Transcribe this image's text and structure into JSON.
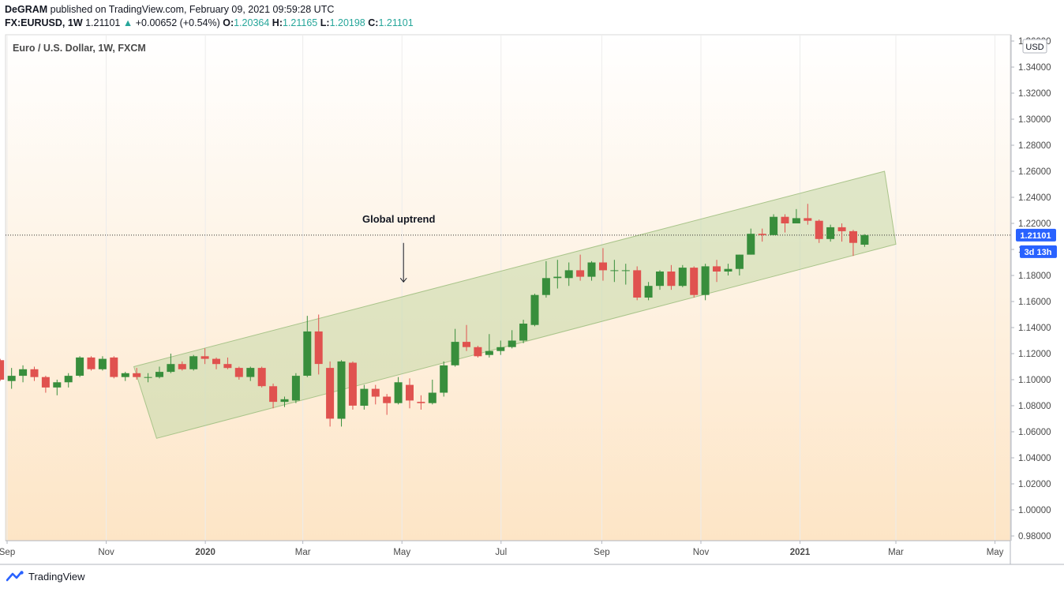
{
  "header": {
    "author": "DeGRAM",
    "published_text": "published on TradingView.com, February 09, 2021 09:59:28 UTC",
    "symbol": "FX:EURUSD, 1W",
    "last": "1.21101",
    "change": "+0.00652 (+0.54%)",
    "open_label": "O:",
    "open": "1.20364",
    "high_label": "H:",
    "high": "1.21165",
    "low_label": "L:",
    "low": "1.20198",
    "close_label": "C:",
    "close": "1.21101"
  },
  "footer": {
    "brand": "TradingView"
  },
  "colors": {
    "up": "#388e3c",
    "down": "#e0524f",
    "channel": "#c5d9a8",
    "price_tag": "#2962ff"
  },
  "chart_data": {
    "type": "candlestick",
    "title": "Euro / U.S. Dollar, 1W, FXCM",
    "currency": "USD",
    "ylim": [
      0.98,
      1.36
    ],
    "y_ticks": [
      "1.36000",
      "1.34000",
      "1.32000",
      "1.30000",
      "1.28000",
      "1.26000",
      "1.24000",
      "1.22000",
      "1.20000",
      "1.18000",
      "1.16000",
      "1.14000",
      "1.12000",
      "1.10000",
      "1.08000",
      "1.06000",
      "1.04000",
      "1.02000",
      "1.00000",
      "0.98000"
    ],
    "x_ticks": [
      {
        "label": "Sep",
        "date": "2019-09-01",
        "bold": false
      },
      {
        "label": "Nov",
        "date": "2019-11-01",
        "bold": false
      },
      {
        "label": "2020",
        "date": "2020-01-01",
        "bold": true
      },
      {
        "label": "Mar",
        "date": "2020-03-01",
        "bold": false
      },
      {
        "label": "May",
        "date": "2020-05-01",
        "bold": false
      },
      {
        "label": "Jul",
        "date": "2020-07-01",
        "bold": false
      },
      {
        "label": "Sep",
        "date": "2020-09-01",
        "bold": false
      },
      {
        "label": "Nov",
        "date": "2020-11-01",
        "bold": false
      },
      {
        "label": "2021",
        "date": "2021-01-01",
        "bold": true
      },
      {
        "label": "Mar",
        "date": "2021-03-01",
        "bold": false
      },
      {
        "label": "May",
        "date": "2021-05-01",
        "bold": false
      }
    ],
    "last_price": "1.21101",
    "countdown": "3d 13h",
    "annotation": {
      "text": "Global uptrend",
      "arrow_date": "2020-05-01",
      "arrow_from": 1.205,
      "arrow_to": 1.175
    },
    "channel": {
      "upper": [
        [
          "2019-11-18",
          1.11
        ],
        [
          "2021-02-22",
          1.26
        ]
      ],
      "lower": [
        [
          "2019-12-02",
          1.055
        ],
        [
          "2021-03-01",
          1.204
        ]
      ]
    },
    "candles": [
      [
        "2019-08-26",
        1.115,
        1.1,
        1.116,
        1.099
      ],
      [
        "2019-09-02",
        1.099,
        1.103,
        1.109,
        1.093
      ],
      [
        "2019-09-09",
        1.103,
        1.108,
        1.111,
        1.098
      ],
      [
        "2019-09-16",
        1.108,
        1.102,
        1.11,
        1.099
      ],
      [
        "2019-09-23",
        1.102,
        1.094,
        1.103,
        1.09
      ],
      [
        "2019-09-30",
        1.094,
        1.098,
        1.1,
        1.088
      ],
      [
        "2019-10-07",
        1.098,
        1.103,
        1.105,
        1.094
      ],
      [
        "2019-10-14",
        1.103,
        1.117,
        1.118,
        1.102
      ],
      [
        "2019-10-21",
        1.117,
        1.108,
        1.118,
        1.107
      ],
      [
        "2019-10-28",
        1.108,
        1.116,
        1.118,
        1.107
      ],
      [
        "2019-11-04",
        1.117,
        1.102,
        1.118,
        1.101
      ],
      [
        "2019-11-11",
        1.102,
        1.105,
        1.106,
        1.099
      ],
      [
        "2019-11-18",
        1.105,
        1.102,
        1.109,
        1.1
      ],
      [
        "2019-11-25",
        1.102,
        1.102,
        1.105,
        1.098
      ],
      [
        "2019-12-02",
        1.102,
        1.106,
        1.11,
        1.101
      ],
      [
        "2019-12-09",
        1.106,
        1.112,
        1.12,
        1.105
      ],
      [
        "2019-12-16",
        1.112,
        1.108,
        1.114,
        1.107
      ],
      [
        "2019-12-23",
        1.108,
        1.118,
        1.119,
        1.107
      ],
      [
        "2019-12-30",
        1.118,
        1.116,
        1.124,
        1.112
      ],
      [
        "2020-01-06",
        1.116,
        1.112,
        1.117,
        1.108
      ],
      [
        "2020-01-13",
        1.112,
        1.109,
        1.117,
        1.108
      ],
      [
        "2020-01-20",
        1.109,
        1.102,
        1.11,
        1.1
      ],
      [
        "2020-01-27",
        1.102,
        1.109,
        1.11,
        1.099
      ],
      [
        "2020-02-03",
        1.109,
        1.095,
        1.11,
        1.094
      ],
      [
        "2020-02-10",
        1.095,
        1.083,
        1.097,
        1.078
      ],
      [
        "2020-02-17",
        1.083,
        1.085,
        1.087,
        1.079
      ],
      [
        "2020-02-24",
        1.084,
        1.103,
        1.105,
        1.082
      ],
      [
        "2020-03-02",
        1.103,
        1.137,
        1.149,
        1.102
      ],
      [
        "2020-03-09",
        1.137,
        1.112,
        1.15,
        1.104
      ],
      [
        "2020-03-16",
        1.109,
        1.07,
        1.114,
        1.064
      ],
      [
        "2020-03-23",
        1.07,
        1.114,
        1.115,
        1.064
      ],
      [
        "2020-03-30",
        1.113,
        1.08,
        1.114,
        1.077
      ],
      [
        "2020-04-06",
        1.08,
        1.093,
        1.096,
        1.077
      ],
      [
        "2020-04-13",
        1.093,
        1.087,
        1.096,
        1.081
      ],
      [
        "2020-04-20",
        1.087,
        1.082,
        1.089,
        1.073
      ],
      [
        "2020-04-27",
        1.082,
        1.098,
        1.102,
        1.081
      ],
      [
        "2020-05-04",
        1.096,
        1.084,
        1.101,
        1.078
      ],
      [
        "2020-05-11",
        1.083,
        1.082,
        1.088,
        1.077
      ],
      [
        "2020-05-18",
        1.082,
        1.09,
        1.1,
        1.081
      ],
      [
        "2020-05-25",
        1.09,
        1.111,
        1.114,
        1.087
      ],
      [
        "2020-06-01",
        1.111,
        1.129,
        1.139,
        1.11
      ],
      [
        "2020-06-08",
        1.129,
        1.125,
        1.142,
        1.122
      ],
      [
        "2020-06-15",
        1.125,
        1.118,
        1.126,
        1.117
      ],
      [
        "2020-06-22",
        1.119,
        1.122,
        1.135,
        1.117
      ],
      [
        "2020-06-29",
        1.122,
        1.125,
        1.13,
        1.119
      ],
      [
        "2020-07-06",
        1.125,
        1.13,
        1.138,
        1.124
      ],
      [
        "2020-07-13",
        1.13,
        1.143,
        1.146,
        1.128
      ],
      [
        "2020-07-20",
        1.142,
        1.165,
        1.166,
        1.141
      ],
      [
        "2020-07-27",
        1.165,
        1.178,
        1.191,
        1.163
      ],
      [
        "2020-08-03",
        1.178,
        1.179,
        1.192,
        1.17
      ],
      [
        "2020-08-10",
        1.178,
        1.184,
        1.19,
        1.172
      ],
      [
        "2020-08-17",
        1.184,
        1.179,
        1.196,
        1.176
      ],
      [
        "2020-08-24",
        1.179,
        1.19,
        1.191,
        1.176
      ],
      [
        "2020-08-31",
        1.19,
        1.184,
        1.201,
        1.176
      ],
      [
        "2020-09-07",
        1.184,
        1.184,
        1.192,
        1.175
      ],
      [
        "2020-09-14",
        1.184,
        1.184,
        1.189,
        1.173
      ],
      [
        "2020-09-21",
        1.184,
        1.163,
        1.187,
        1.161
      ],
      [
        "2020-09-28",
        1.163,
        1.172,
        1.175,
        1.161
      ],
      [
        "2020-10-05",
        1.172,
        1.183,
        1.184,
        1.169
      ],
      [
        "2020-10-12",
        1.183,
        1.172,
        1.188,
        1.169
      ],
      [
        "2020-10-19",
        1.172,
        1.186,
        1.188,
        1.171
      ],
      [
        "2020-10-26",
        1.186,
        1.165,
        1.187,
        1.163
      ],
      [
        "2020-11-02",
        1.165,
        1.187,
        1.189,
        1.161
      ],
      [
        "2020-11-09",
        1.187,
        1.183,
        1.192,
        1.175
      ],
      [
        "2020-11-16",
        1.183,
        1.185,
        1.189,
        1.18
      ],
      [
        "2020-11-23",
        1.185,
        1.196,
        1.196,
        1.18
      ],
      [
        "2020-11-30",
        1.196,
        1.212,
        1.216,
        1.196
      ],
      [
        "2020-12-07",
        1.212,
        1.211,
        1.216,
        1.206
      ],
      [
        "2020-12-14",
        1.211,
        1.225,
        1.227,
        1.211
      ],
      [
        "2020-12-21",
        1.225,
        1.22,
        1.227,
        1.213
      ],
      [
        "2020-12-28",
        1.22,
        1.224,
        1.231,
        1.22
      ],
      [
        "2021-01-04",
        1.224,
        1.222,
        1.235,
        1.219
      ],
      [
        "2021-01-11",
        1.222,
        1.208,
        1.223,
        1.205
      ],
      [
        "2021-01-18",
        1.208,
        1.217,
        1.219,
        1.206
      ],
      [
        "2021-01-25",
        1.217,
        1.214,
        1.22,
        1.206
      ],
      [
        "2021-02-01",
        1.214,
        1.205,
        1.215,
        1.195
      ],
      [
        "2021-02-08",
        1.2036,
        1.211,
        1.2117,
        1.202
      ]
    ]
  }
}
